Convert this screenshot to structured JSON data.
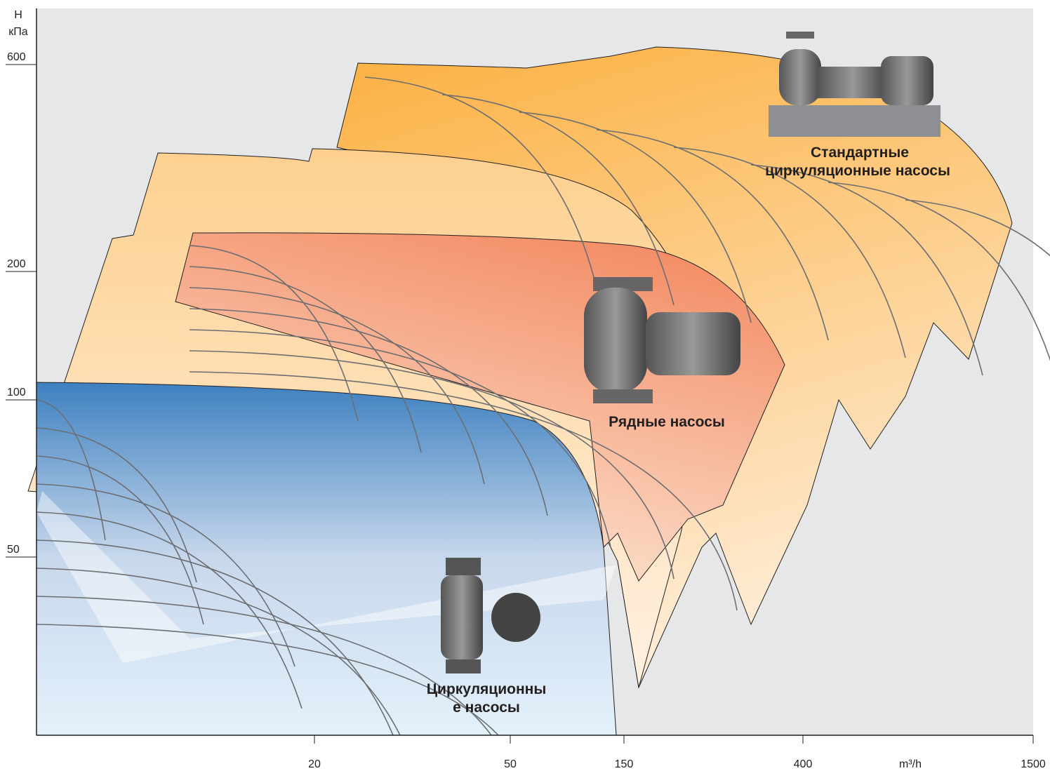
{
  "y_axis": {
    "title": "H",
    "unit": "кПа",
    "ticks": [
      "600",
      "200",
      "100",
      "50"
    ]
  },
  "x_axis": {
    "ticks": [
      "20",
      "50",
      "150",
      "400",
      "1500"
    ],
    "unit": "m³/h"
  },
  "groups": [
    {
      "label_lines": [
        "Стандартные",
        "циркуляционные насосы"
      ]
    },
    {
      "label_lines": [
        "Рядные насосы"
      ]
    },
    {
      "label_lines": [
        "Циркуляционны",
        "е насосы"
      ]
    }
  ]
}
